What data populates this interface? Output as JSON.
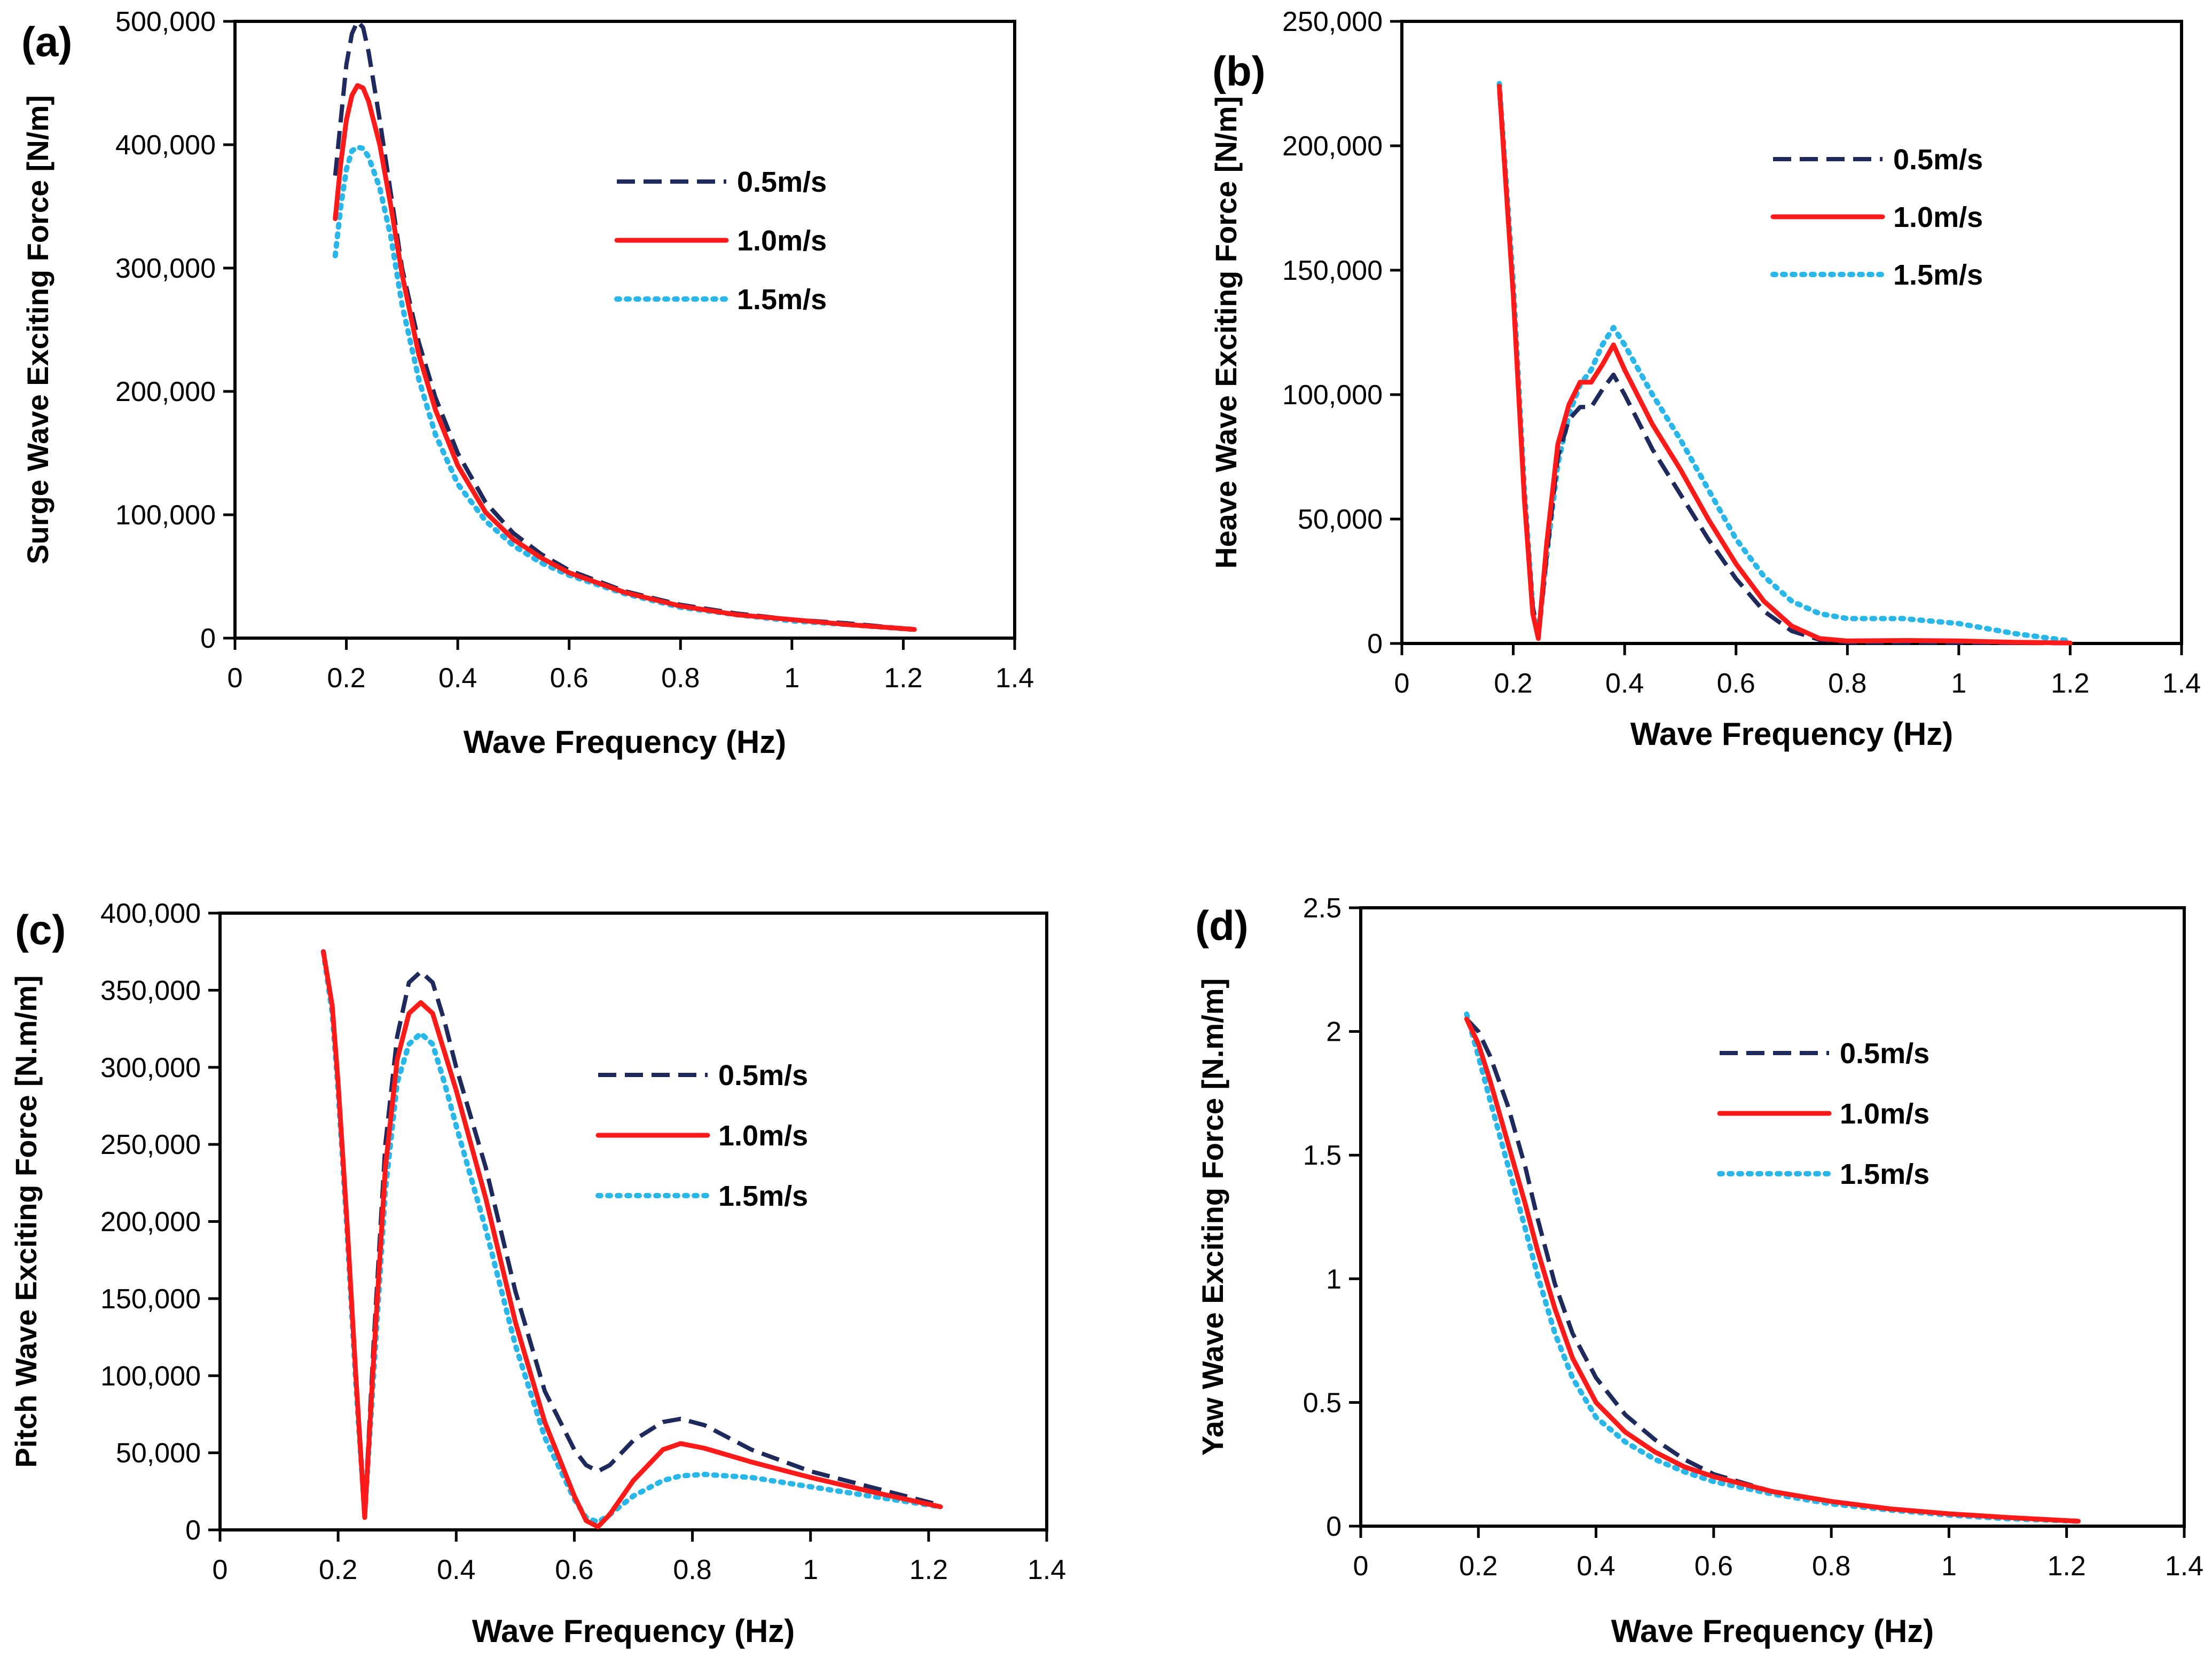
{
  "colors": {
    "s05": "#1f2a5c",
    "s10": "#ff1a1a",
    "s15": "#29b6e8",
    "axis": "#000000"
  },
  "chart_data": [
    {
      "id": "a",
      "type": "line",
      "panel_label": "(a)",
      "xlabel": "Wave Frequency (Hz)",
      "ylabel": "Surge Wave Exciting Force [N/m]",
      "xlim": [
        0,
        1.4
      ],
      "ylim": [
        0,
        500000
      ],
      "xticks": [
        0,
        0.2,
        0.4,
        0.6,
        0.8,
        1,
        1.2,
        1.4
      ],
      "xtick_labels": [
        "0",
        "0.2",
        "0.4",
        "0.6",
        "0.8",
        "1",
        "1.2",
        "1.4"
      ],
      "yticks": [
        0,
        100000,
        200000,
        300000,
        400000,
        500000
      ],
      "ytick_labels": [
        "0",
        "100,000",
        "200,000",
        "300,000",
        "400,000",
        "500,000"
      ],
      "legend": "center-right",
      "series": [
        {
          "name": "0.5m/s",
          "x": [
            0.18,
            0.19,
            0.2,
            0.21,
            0.22,
            0.23,
            0.24,
            0.26,
            0.28,
            0.3,
            0.33,
            0.36,
            0.4,
            0.45,
            0.5,
            0.55,
            0.6,
            0.7,
            0.8,
            0.9,
            1.0,
            1.1,
            1.22
          ],
          "y": [
            375000,
            420000,
            465000,
            490000,
            500000,
            495000,
            475000,
            420000,
            360000,
            300000,
            240000,
            195000,
            150000,
            110000,
            85000,
            68000,
            55000,
            38000,
            27000,
            20000,
            15000,
            12000,
            7000
          ]
        },
        {
          "name": "1.0m/s",
          "x": [
            0.18,
            0.19,
            0.2,
            0.21,
            0.22,
            0.23,
            0.24,
            0.26,
            0.28,
            0.3,
            0.33,
            0.36,
            0.4,
            0.45,
            0.5,
            0.55,
            0.6,
            0.7,
            0.8,
            0.9,
            1.0,
            1.1,
            1.22
          ],
          "y": [
            340000,
            385000,
            420000,
            440000,
            448000,
            446000,
            435000,
            400000,
            350000,
            295000,
            230000,
            185000,
            140000,
            102000,
            80000,
            65000,
            53000,
            37000,
            26000,
            19000,
            15000,
            11000,
            7000
          ]
        },
        {
          "name": "1.5m/s",
          "x": [
            0.18,
            0.19,
            0.2,
            0.21,
            0.22,
            0.23,
            0.24,
            0.26,
            0.28,
            0.3,
            0.33,
            0.36,
            0.4,
            0.45,
            0.5,
            0.55,
            0.6,
            0.7,
            0.8,
            0.9,
            1.0,
            1.1,
            1.22
          ],
          "y": [
            310000,
            350000,
            380000,
            395000,
            398000,
            397000,
            390000,
            365000,
            325000,
            270000,
            210000,
            165000,
            125000,
            95000,
            75000,
            61000,
            51000,
            36000,
            25000,
            19000,
            14000,
            11000,
            7000
          ]
        }
      ]
    },
    {
      "id": "b",
      "type": "line",
      "panel_label": "(b)",
      "xlabel": "Wave Frequency (Hz)",
      "ylabel": "Heave Wave Exciting Force [N/m]",
      "xlim": [
        0,
        1.4
      ],
      "ylim": [
        0,
        250000
      ],
      "xticks": [
        0,
        0.2,
        0.4,
        0.6,
        0.8,
        1,
        1.2,
        1.4
      ],
      "xtick_labels": [
        "0",
        "0.2",
        "0.4",
        "0.6",
        "0.8",
        "1",
        "1.2",
        "1.4"
      ],
      "yticks": [
        0,
        50000,
        100000,
        150000,
        200000,
        250000
      ],
      "ytick_labels": [
        "0",
        "50,000",
        "100,000",
        "150,000",
        "200,000",
        "250,000"
      ],
      "legend": "top-right",
      "series": [
        {
          "name": "0.5m/s",
          "x": [
            0.175,
            0.2,
            0.22,
            0.235,
            0.245,
            0.26,
            0.28,
            0.3,
            0.32,
            0.34,
            0.36,
            0.38,
            0.4,
            0.45,
            0.5,
            0.55,
            0.6,
            0.65,
            0.7,
            0.75,
            0.8,
            0.9,
            1.0,
            1.1,
            1.2
          ],
          "y": [
            222000,
            140000,
            60000,
            15000,
            2000,
            35000,
            75000,
            90000,
            95000,
            95000,
            102000,
            108000,
            100000,
            78000,
            60000,
            42000,
            26000,
            13000,
            5000,
            1500,
            500,
            400,
            300,
            200,
            100
          ]
        },
        {
          "name": "1.0m/s",
          "x": [
            0.175,
            0.2,
            0.22,
            0.235,
            0.245,
            0.26,
            0.28,
            0.3,
            0.32,
            0.34,
            0.36,
            0.38,
            0.4,
            0.45,
            0.5,
            0.55,
            0.6,
            0.65,
            0.7,
            0.75,
            0.8,
            0.9,
            1.0,
            1.1,
            1.2
          ],
          "y": [
            224000,
            140000,
            58000,
            12000,
            2000,
            40000,
            80000,
            96000,
            105000,
            105000,
            112000,
            120000,
            110000,
            88000,
            70000,
            50000,
            32000,
            17000,
            7000,
            2000,
            1000,
            1200,
            1000,
            500,
            200
          ]
        },
        {
          "name": "1.5m/s",
          "x": [
            0.175,
            0.2,
            0.22,
            0.235,
            0.245,
            0.26,
            0.28,
            0.3,
            0.32,
            0.34,
            0.36,
            0.38,
            0.4,
            0.45,
            0.5,
            0.55,
            0.6,
            0.65,
            0.7,
            0.75,
            0.8,
            0.9,
            1.0,
            1.1,
            1.2
          ],
          "y": [
            225000,
            145000,
            62000,
            14000,
            3000,
            35000,
            72000,
            92000,
            104000,
            110000,
            120000,
            127000,
            120000,
            100000,
            82000,
            62000,
            42000,
            27000,
            17000,
            12000,
            10000,
            10000,
            8000,
            4000,
            1000
          ]
        }
      ]
    },
    {
      "id": "c",
      "type": "line",
      "panel_label": "(c)",
      "xlabel": "Wave Frequency (Hz)",
      "ylabel": "Pitch Wave Exciting Force [N.m/m]",
      "xlim": [
        0,
        1.4
      ],
      "ylim": [
        0,
        400000
      ],
      "xticks": [
        0,
        0.2,
        0.4,
        0.6,
        0.8,
        1,
        1.2,
        1.4
      ],
      "xtick_labels": [
        "0",
        "0.2",
        "0.4",
        "0.6",
        "0.8",
        "1",
        "1.2",
        "1.4"
      ],
      "yticks": [
        0,
        50000,
        100000,
        150000,
        200000,
        250000,
        300000,
        350000,
        400000
      ],
      "ytick_labels": [
        "0",
        "50,000",
        "100,000",
        "150,000",
        "200,000",
        "250,000",
        "300,000",
        "350,000",
        "400,000"
      ],
      "legend": "center-right",
      "series": [
        {
          "name": "0.5m/s",
          "x": [
            0.175,
            0.19,
            0.2,
            0.215,
            0.23,
            0.245,
            0.26,
            0.28,
            0.3,
            0.32,
            0.34,
            0.36,
            0.38,
            0.4,
            0.45,
            0.5,
            0.55,
            0.6,
            0.62,
            0.64,
            0.66,
            0.7,
            0.75,
            0.78,
            0.82,
            0.9,
            1.0,
            1.1,
            1.22
          ],
          "y": [
            375000,
            340000,
            290000,
            200000,
            100000,
            10000,
            120000,
            250000,
            320000,
            355000,
            362000,
            355000,
            330000,
            300000,
            235000,
            155000,
            90000,
            52000,
            42000,
            38000,
            42000,
            58000,
            70000,
            72000,
            68000,
            52000,
            38000,
            28000,
            16000
          ]
        },
        {
          "name": "1.0m/s",
          "x": [
            0.175,
            0.19,
            0.2,
            0.215,
            0.23,
            0.245,
            0.26,
            0.28,
            0.3,
            0.32,
            0.34,
            0.36,
            0.38,
            0.4,
            0.45,
            0.5,
            0.55,
            0.6,
            0.62,
            0.64,
            0.66,
            0.7,
            0.75,
            0.78,
            0.82,
            0.9,
            1.0,
            1.1,
            1.22
          ],
          "y": [
            375000,
            340000,
            290000,
            200000,
            100000,
            8000,
            110000,
            235000,
            305000,
            335000,
            342000,
            335000,
            310000,
            285000,
            215000,
            135000,
            70000,
            22000,
            6000,
            2000,
            10000,
            32000,
            52000,
            56000,
            53000,
            44000,
            34000,
            25000,
            15000
          ]
        },
        {
          "name": "1.5m/s",
          "x": [
            0.175,
            0.19,
            0.2,
            0.215,
            0.23,
            0.245,
            0.26,
            0.28,
            0.3,
            0.32,
            0.34,
            0.36,
            0.38,
            0.4,
            0.45,
            0.5,
            0.55,
            0.6,
            0.62,
            0.64,
            0.66,
            0.7,
            0.75,
            0.78,
            0.82,
            0.9,
            1.0,
            1.1,
            1.22
          ],
          "y": [
            375000,
            335000,
            285000,
            195000,
            95000,
            10000,
            100000,
            220000,
            290000,
            315000,
            322000,
            315000,
            290000,
            262000,
            195000,
            120000,
            60000,
            20000,
            8000,
            5000,
            10000,
            22000,
            32000,
            35000,
            36000,
            34000,
            28000,
            22000,
            15000
          ]
        }
      ]
    },
    {
      "id": "d",
      "type": "line",
      "panel_label": "(d)",
      "xlabel": "Wave Frequency (Hz)",
      "ylabel": "Yaw Wave Exciting Force [N.m/m]",
      "xlim": [
        0,
        1.4
      ],
      "ylim": [
        0,
        2.5
      ],
      "xticks": [
        0,
        0.2,
        0.4,
        0.6,
        0.8,
        1,
        1.2,
        1.4
      ],
      "xtick_labels": [
        "0",
        "0.2",
        "0.4",
        "0.6",
        "0.8",
        "1",
        "1.2",
        "1.4"
      ],
      "yticks": [
        0,
        0.5,
        1,
        1.5,
        2,
        2.5
      ],
      "ytick_labels": [
        "0",
        "0.5",
        "1",
        "1.5",
        "2",
        "2.5"
      ],
      "legend": "top-right",
      "series": [
        {
          "name": "0.5m/s",
          "x": [
            0.18,
            0.2,
            0.22,
            0.25,
            0.28,
            0.3,
            0.33,
            0.36,
            0.4,
            0.45,
            0.5,
            0.55,
            0.6,
            0.7,
            0.8,
            0.9,
            1.0,
            1.1,
            1.22
          ],
          "y": [
            2.05,
            2.0,
            1.9,
            1.7,
            1.45,
            1.25,
            0.98,
            0.78,
            0.6,
            0.45,
            0.35,
            0.27,
            0.21,
            0.14,
            0.1,
            0.07,
            0.05,
            0.035,
            0.02
          ]
        },
        {
          "name": "1.0m/s",
          "x": [
            0.18,
            0.2,
            0.22,
            0.25,
            0.28,
            0.3,
            0.33,
            0.36,
            0.4,
            0.45,
            0.5,
            0.55,
            0.6,
            0.7,
            0.8,
            0.9,
            1.0,
            1.1,
            1.22
          ],
          "y": [
            2.05,
            1.95,
            1.8,
            1.55,
            1.3,
            1.12,
            0.88,
            0.68,
            0.5,
            0.38,
            0.3,
            0.24,
            0.2,
            0.14,
            0.1,
            0.07,
            0.05,
            0.035,
            0.02
          ]
        },
        {
          "name": "1.5m/s",
          "x": [
            0.18,
            0.2,
            0.22,
            0.25,
            0.28,
            0.3,
            0.33,
            0.36,
            0.4,
            0.45,
            0.5,
            0.55,
            0.6,
            0.7,
            0.8,
            0.9,
            1.0,
            1.1,
            1.22
          ],
          "y": [
            2.07,
            1.9,
            1.72,
            1.46,
            1.2,
            1.02,
            0.78,
            0.6,
            0.44,
            0.34,
            0.27,
            0.22,
            0.18,
            0.13,
            0.09,
            0.065,
            0.045,
            0.03,
            0.02
          ]
        }
      ]
    }
  ]
}
